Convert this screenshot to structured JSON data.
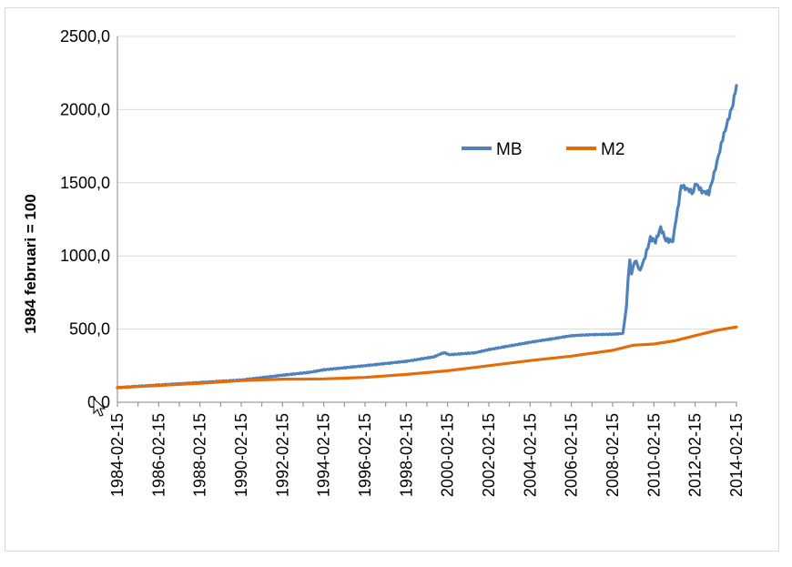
{
  "colors": {
    "MB": "#4f81bd",
    "M2": "#e46c0a",
    "grid": "#d9d9d9",
    "axis": "#868686"
  },
  "icons": {
    "cursor": "mouse-pointer-icon"
  },
  "chart_data": {
    "type": "line",
    "title": "",
    "xlabel": "",
    "ylabel": "1984 februari = 100",
    "ylim": [
      0,
      2500
    ],
    "yticks": [
      "0,0",
      "500,0",
      "1000,0",
      "1500,0",
      "2000,0",
      "2500,0"
    ],
    "xticks": [
      "1984-02-15",
      "1986-02-15",
      "1988-02-15",
      "1990-02-15",
      "1992-02-15",
      "1994-02-15",
      "1996-02-15",
      "1998-02-15",
      "2000-02-15",
      "2002-02-15",
      "2004-02-15",
      "2006-02-15",
      "2008-02-15",
      "2010-02-15",
      "2012-02-15",
      "2014-02-15"
    ],
    "grid": "horizontal",
    "legend": "inside-top-right",
    "series": [
      {
        "name": "MB",
        "points": [
          [
            "1984-02-15",
            100
          ],
          [
            "1986-02-15",
            118
          ],
          [
            "1988-02-15",
            135
          ],
          [
            "1990-02-15",
            152
          ],
          [
            "1992-02-15",
            185
          ],
          [
            "1993-06-15",
            205
          ],
          [
            "1994-02-15",
            222
          ],
          [
            "1996-02-15",
            250
          ],
          [
            "1998-02-15",
            280
          ],
          [
            "1999-06-15",
            310
          ],
          [
            "1999-12-15",
            340
          ],
          [
            "2000-03-15",
            325
          ],
          [
            "2001-06-15",
            338
          ],
          [
            "2002-02-15",
            360
          ],
          [
            "2003-02-15",
            385
          ],
          [
            "2004-02-15",
            410
          ],
          [
            "2005-02-15",
            432
          ],
          [
            "2006-02-15",
            455
          ],
          [
            "2007-02-15",
            462
          ],
          [
            "2008-02-15",
            465
          ],
          [
            "2008-08-15",
            470
          ],
          [
            "2008-10-15",
            650
          ],
          [
            "2008-11-15",
            850
          ],
          [
            "2008-12-15",
            960
          ],
          [
            "2009-01-15",
            880
          ],
          [
            "2009-03-15",
            975
          ],
          [
            "2009-06-15",
            900
          ],
          [
            "2009-09-15",
            1000
          ],
          [
            "2009-12-15",
            1120
          ],
          [
            "2010-03-15",
            1100
          ],
          [
            "2010-06-15",
            1190
          ],
          [
            "2010-09-15",
            1110
          ],
          [
            "2011-01-15",
            1100
          ],
          [
            "2011-03-15",
            1250
          ],
          [
            "2011-06-15",
            1480
          ],
          [
            "2011-09-15",
            1460
          ],
          [
            "2012-01-15",
            1430
          ],
          [
            "2012-02-15",
            1500
          ],
          [
            "2012-06-15",
            1440
          ],
          [
            "2012-10-15",
            1430
          ],
          [
            "2013-01-15",
            1560
          ],
          [
            "2013-06-15",
            1800
          ],
          [
            "2013-09-15",
            1920
          ],
          [
            "2013-12-15",
            2040
          ],
          [
            "2014-02-15",
            2165
          ]
        ]
      },
      {
        "name": "M2",
        "points": [
          [
            "1984-02-15",
            100
          ],
          [
            "1986-02-15",
            115
          ],
          [
            "1988-02-15",
            130
          ],
          [
            "1990-02-15",
            148
          ],
          [
            "1992-02-15",
            158
          ],
          [
            "1994-02-15",
            160
          ],
          [
            "1996-02-15",
            170
          ],
          [
            "1998-02-15",
            190
          ],
          [
            "2000-02-15",
            215
          ],
          [
            "2002-02-15",
            250
          ],
          [
            "2004-02-15",
            285
          ],
          [
            "2006-02-15",
            315
          ],
          [
            "2008-02-15",
            355
          ],
          [
            "2009-02-15",
            390
          ],
          [
            "2010-02-15",
            398
          ],
          [
            "2011-02-15",
            420
          ],
          [
            "2012-02-15",
            455
          ],
          [
            "2013-02-15",
            490
          ],
          [
            "2014-02-15",
            515
          ]
        ]
      }
    ]
  }
}
